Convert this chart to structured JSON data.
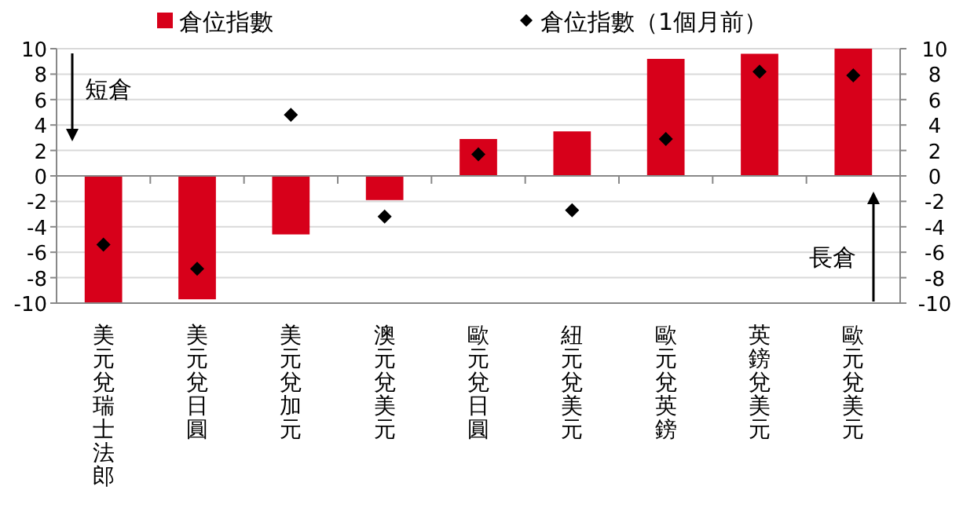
{
  "chart_data": {
    "type": "bar",
    "categories": [
      "美元兌瑞士法郎",
      "美元兌日圓",
      "美元兌加元",
      "澳元兌美元",
      "歐元兌日圓",
      "紐元兌美元",
      "歐元兌英鎊",
      "英鎊兌美元",
      "歐元兌美元"
    ],
    "series": [
      {
        "name": "倉位指數",
        "color": "#d7001a",
        "values": [
          -10,
          -9.7,
          -4.6,
          -1.9,
          2.9,
          3.5,
          9.2,
          9.6,
          10
        ]
      },
      {
        "name": "倉位指數（1個月前）",
        "type": "scatter",
        "marker": "diamond",
        "color": "#000000",
        "values": [
          -5.4,
          -7.3,
          4.8,
          -3.2,
          1.7,
          -2.7,
          2.9,
          8.2,
          7.9
        ]
      }
    ],
    "ylim": [
      -10,
      10
    ],
    "yticks": [
      -10,
      -8,
      -6,
      -4,
      -2,
      0,
      2,
      4,
      6,
      8,
      10
    ],
    "y2lim": [
      -10,
      10
    ],
    "y2ticks": [
      -10,
      -8,
      -6,
      -4,
      -2,
      0,
      2,
      4,
      6,
      8,
      10
    ],
    "grid": "y",
    "legend": "top",
    "annotations": [
      "短倉",
      "長倉"
    ]
  }
}
